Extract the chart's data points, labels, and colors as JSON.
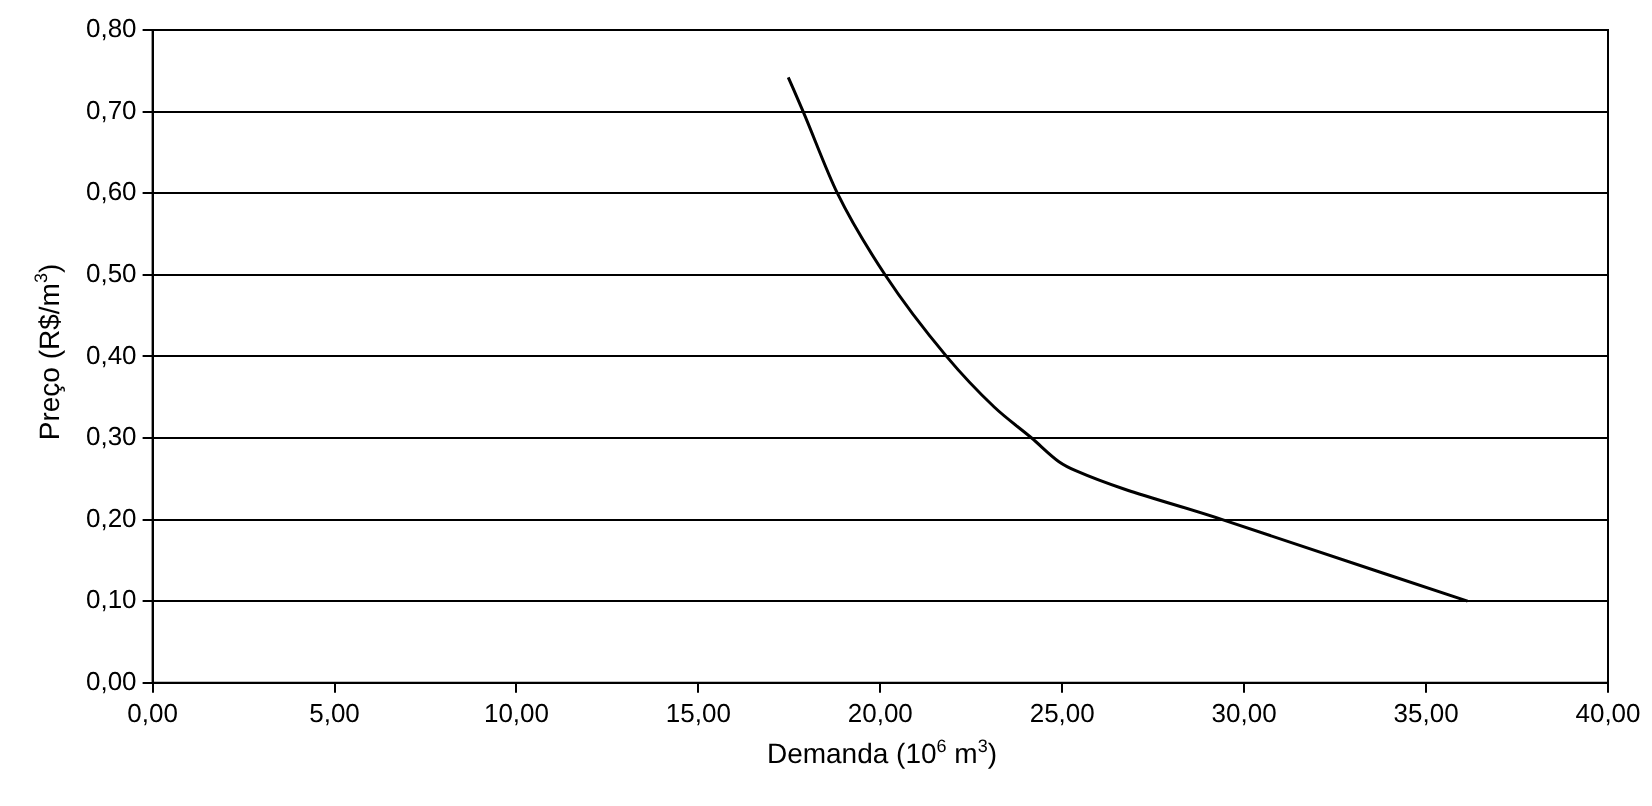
{
  "chart_data": {
    "type": "line",
    "xlabel": "Demanda (10$^{6}$ m$^{3}$)",
    "ylabel": "Preço (R$/m$^{3}$)",
    "xlim": [
      0,
      40
    ],
    "xticks": [
      {
        "value": 0,
        "label": "0,00"
      },
      {
        "value": 5,
        "label": "5,00"
      },
      {
        "value": 10,
        "label": "10,00"
      },
      {
        "value": 15,
        "label": "15,00"
      },
      {
        "value": 20,
        "label": "20,00"
      },
      {
        "value": 25,
        "label": "25,00"
      },
      {
        "value": 30,
        "label": "30,00"
      },
      {
        "value": 35,
        "label": "35,00"
      },
      {
        "value": 40,
        "label": "40,00"
      }
    ],
    "ylim": [
      0,
      0.8
    ],
    "yticks": [
      {
        "value": 0,
        "label": "0,00"
      },
      {
        "value": 0.1,
        "label": "0,10"
      },
      {
        "value": 0.2,
        "label": "0,20"
      },
      {
        "value": 0.3,
        "label": "0,30"
      },
      {
        "value": 0.4,
        "label": "0,40"
      },
      {
        "value": 0.5,
        "label": "0,50"
      },
      {
        "value": 0.6,
        "label": "0,60"
      },
      {
        "value": 0.7,
        "label": "0,70"
      },
      {
        "value": 0.8,
        "label": "0,80"
      }
    ],
    "grid": "y",
    "legend": false,
    "marker": "none",
    "line_style": "solid",
    "series": [
      {
        "color": "#000000",
        "x": [
          17.47,
          17.88,
          18.82,
          20.13,
          21.82,
          23.13,
          24.16,
          24.91,
          25.37,
          29.4,
          36.14
        ],
        "values": [
          0.742,
          0.7,
          0.6,
          0.5,
          0.4,
          0.338,
          0.3,
          0.271,
          0.26,
          0.2,
          0.1
        ]
      }
    ]
  }
}
